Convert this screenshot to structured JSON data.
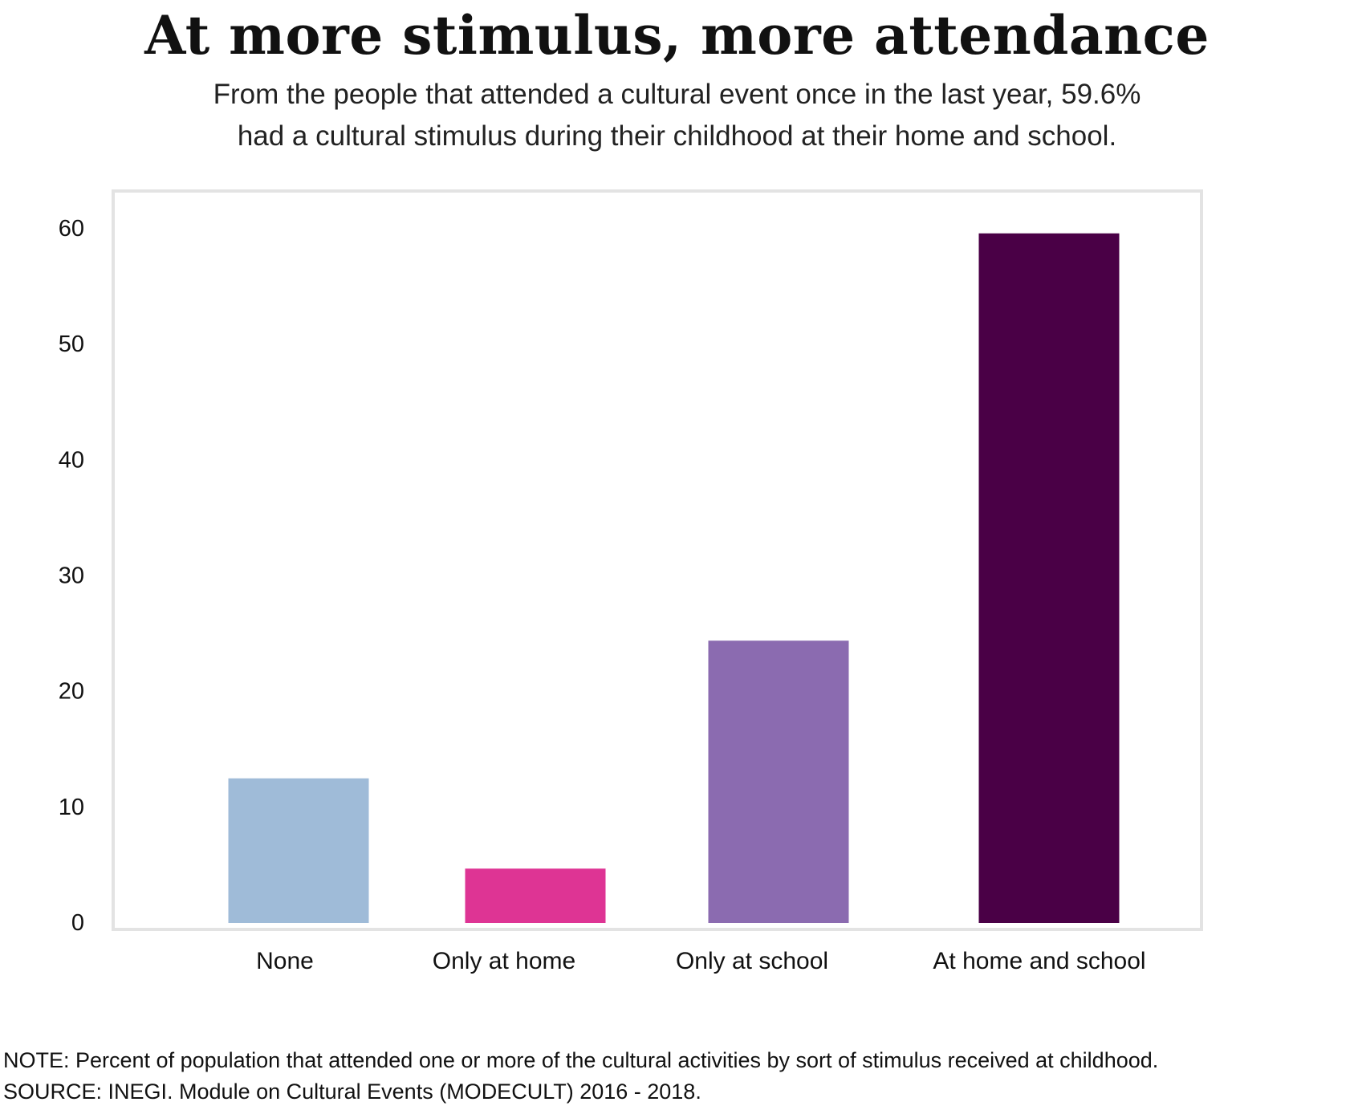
{
  "title": "At more stimulus, more attendance",
  "subtitle_lines": [
    "From the people that attended a cultural event once in the last year, 59.6%",
    "had a cultural stimulus during their childhood at their home and school."
  ],
  "note": "NOTE: Percent of population that attended one or more  of the cultural activities by sort of stimulus received at childhood.",
  "source": "SOURCE: INEGI. Module on Cultural Events (MODECULT) 2016 - 2018.",
  "chart_data": {
    "type": "bar",
    "categories": [
      "None",
      "Only at home",
      "Only at school",
      "At home and school"
    ],
    "values": [
      12.5,
      4.7,
      24.4,
      59.6
    ],
    "colors": [
      "#9fbbd8",
      "#de3494",
      "#8b6bb0",
      "#4a0046"
    ],
    "title": "At more stimulus, more attendance",
    "xlabel": "",
    "ylabel": "",
    "ylim": [
      0,
      60
    ],
    "yticks": [
      "0",
      "10",
      "20",
      "30",
      "40",
      "50",
      "60"
    ],
    "grid": false,
    "legend": "none",
    "frame_color": "#e3e3e3"
  }
}
